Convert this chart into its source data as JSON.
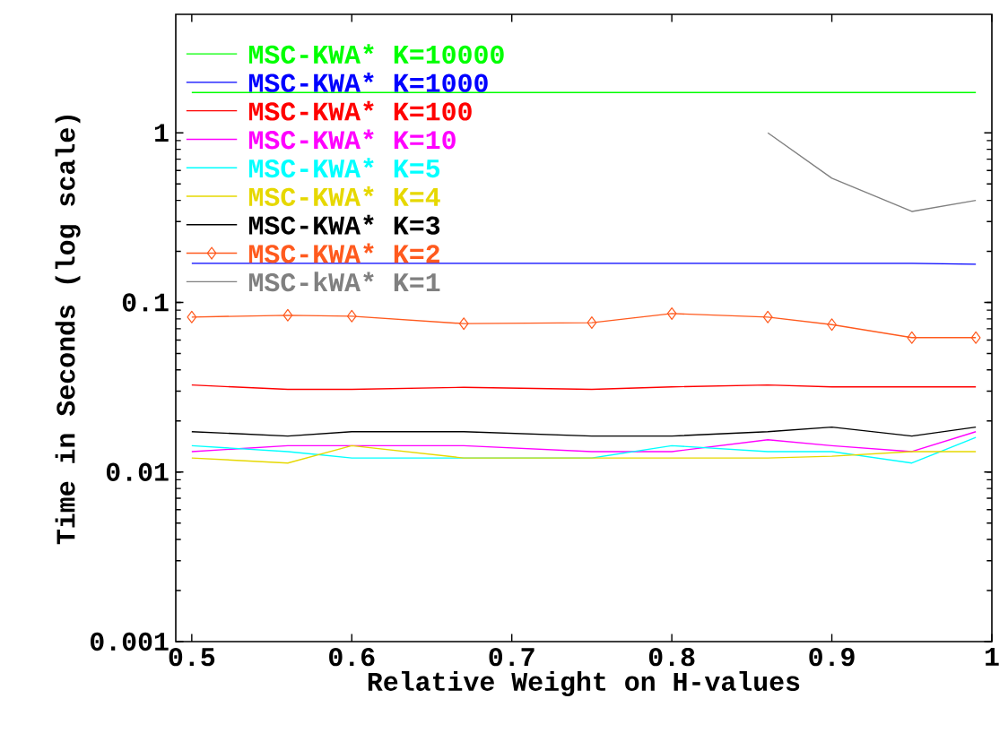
{
  "chart_data": {
    "type": "line",
    "xlabel": "Relative Weight on H-values",
    "ylabel": "Time in Seconds (log scale)",
    "log": "y",
    "legend": "top left",
    "x": [
      0.5,
      0.56,
      0.6,
      0.67,
      0.75,
      0.8,
      0.86,
      0.9,
      0.95,
      0.99
    ],
    "xlim": [
      0.49,
      1.0
    ],
    "xticks": [
      0.5,
      0.6,
      0.7,
      0.8,
      0.9,
      1
    ],
    "ylim": [
      0.001,
      5
    ],
    "yticks": [
      0.001,
      0.01,
      0.1,
      1
    ],
    "series": [
      {
        "name": "MSC-KWA* K=10000",
        "color": "#00ff00",
        "values": [
          1.73,
          1.73,
          1.73,
          1.73,
          1.73,
          1.73,
          1.73,
          1.73,
          1.73,
          1.73
        ]
      },
      {
        "name": "MSC-KWA* K=1000",
        "color": "#0000ff",
        "values": [
          0.17,
          0.17,
          0.17,
          0.17,
          0.17,
          0.17,
          0.17,
          0.17,
          0.17,
          0.168
        ]
      },
      {
        "name": "MSC-KWA* K=100",
        "color": "#ff0000",
        "values": [
          0.0326,
          0.0307,
          0.0307,
          0.0316,
          0.0307,
          0.0318,
          0.0326,
          0.0318,
          0.0318,
          0.0318
        ]
      },
      {
        "name": "MSC-KWA* K=10",
        "color": "#ff00ff",
        "values": [
          0.0132,
          0.0143,
          0.0143,
          0.0143,
          0.0132,
          0.0132,
          0.0155,
          0.0143,
          0.0132,
          0.0173
        ]
      },
      {
        "name": "MSC-KWA* K=5",
        "color": "#00ffff",
        "values": [
          0.0143,
          0.0132,
          0.0121,
          0.0121,
          0.0121,
          0.0143,
          0.0132,
          0.0132,
          0.0113,
          0.016
        ]
      },
      {
        "name": "MSC-KWA* K=4",
        "color": "#e6d800",
        "values": [
          0.0121,
          0.0113,
          0.0143,
          0.0121,
          0.0121,
          0.0121,
          0.0121,
          0.0124,
          0.0132,
          0.0132
        ]
      },
      {
        "name": "MSC-KWA* K=3",
        "color": "#000000",
        "values": [
          0.0173,
          0.0163,
          0.0173,
          0.0173,
          0.0163,
          0.0163,
          0.0173,
          0.0184,
          0.0163,
          0.0184
        ]
      },
      {
        "name": "MSC-KWA* K=2",
        "color": "#ff5a1e",
        "marker": "diamond",
        "values": [
          0.082,
          0.084,
          0.083,
          0.075,
          0.076,
          0.086,
          0.082,
          0.074,
          0.062,
          0.062
        ]
      },
      {
        "name": "MSC-kWA* K=1",
        "color": "#808080",
        "x": [
          0.86,
          0.9,
          0.95,
          0.99
        ],
        "values": [
          1.0,
          0.54,
          0.344,
          0.4
        ]
      }
    ]
  }
}
